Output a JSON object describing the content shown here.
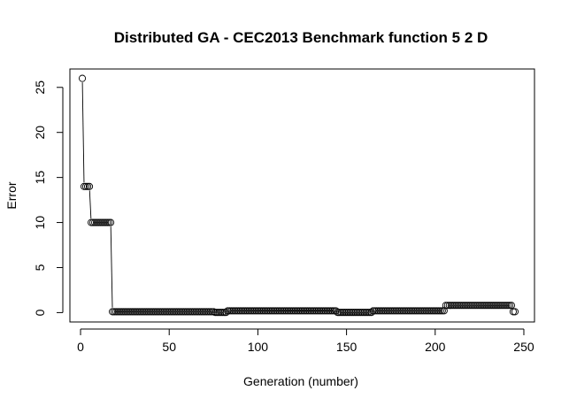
{
  "chart_data": {
    "type": "scatter",
    "title": "Distributed GA - CEC2013 Benchmark function  5 2 D",
    "xlabel": "Generation (number)",
    "ylabel": "Error",
    "xlim": [
      -6,
      256
    ],
    "ylim": [
      -1.04,
      27.04
    ],
    "x_ticks": [
      0,
      50,
      100,
      150,
      200,
      250
    ],
    "y_ticks": [
      0,
      5,
      10,
      15,
      20,
      25
    ],
    "grid": false,
    "legend": "none",
    "point_style": "open circle",
    "series_segments": [
      {
        "from": 1,
        "to": 1,
        "value": 26
      },
      {
        "from": 2,
        "to": 5,
        "value": 14
      },
      {
        "from": 6,
        "to": 17,
        "value": 10
      },
      {
        "from": 18,
        "to": 75,
        "value": 0.1
      },
      {
        "from": 76,
        "to": 82,
        "value": 0.02
      },
      {
        "from": 83,
        "to": 144,
        "value": 0.2
      },
      {
        "from": 145,
        "to": 164,
        "value": 0.02
      },
      {
        "from": 165,
        "to": 205,
        "value": 0.2
      },
      {
        "from": 206,
        "to": 243,
        "value": 0.8
      },
      {
        "from": 244,
        "to": 245,
        "value": 0.1
      }
    ],
    "connector_lines": [
      {
        "x": [
          1,
          2
        ],
        "y": [
          26,
          14
        ]
      },
      {
        "x": [
          5,
          6
        ],
        "y": [
          14,
          10
        ]
      },
      {
        "x": [
          17,
          18
        ],
        "y": [
          10,
          0.1
        ]
      }
    ]
  }
}
